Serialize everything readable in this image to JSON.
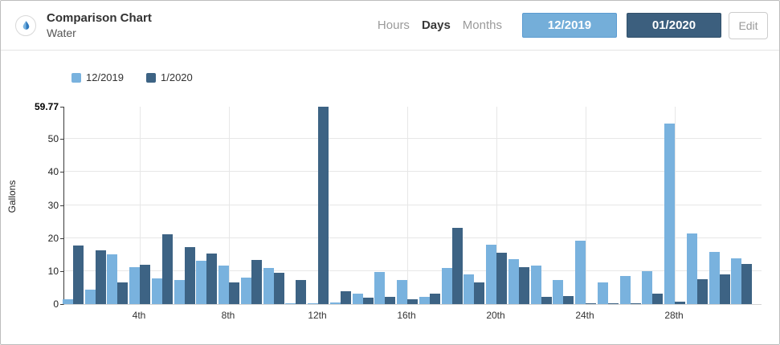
{
  "header": {
    "title": "Comparison Chart",
    "subtitle": "Water",
    "icon": "water-drop-icon",
    "period_tabs": [
      {
        "label": "Hours",
        "active": false
      },
      {
        "label": "Days",
        "active": true
      },
      {
        "label": "Months",
        "active": false
      }
    ],
    "series_buttons": [
      {
        "label": "12/2019",
        "color": "#74aed9"
      },
      {
        "label": "01/2020",
        "color": "#3c5f7e"
      }
    ],
    "edit_label": "Edit"
  },
  "legend": [
    {
      "label": "12/2019",
      "color": "#79b2de"
    },
    {
      "label": "1/2020",
      "color": "#3d6384"
    }
  ],
  "chart_data": {
    "type": "bar",
    "title": "",
    "xlabel": "",
    "ylabel": "Gallons",
    "ylim": [
      0,
      59.77
    ],
    "y_max_label": "59.77",
    "yticks": [
      0,
      10,
      20,
      30,
      40,
      50
    ],
    "grid": true,
    "legend_position": "top-left",
    "categories": [
      1,
      2,
      3,
      4,
      5,
      6,
      7,
      8,
      9,
      10,
      11,
      12,
      13,
      14,
      15,
      16,
      17,
      18,
      19,
      20,
      21,
      22,
      23,
      24,
      25,
      26,
      27,
      28,
      29,
      30,
      31
    ],
    "x_tick_days": [
      4,
      8,
      12,
      16,
      20,
      24,
      28
    ],
    "x_tick_labels": [
      "4th",
      "8th",
      "12th",
      "16th",
      "20th",
      "24th",
      "28th"
    ],
    "series": [
      {
        "name": "12/2019",
        "color": "#79b2de",
        "values": [
          1.5,
          4.4,
          15.1,
          11.2,
          7.7,
          7.2,
          13.0,
          11.6,
          8.0,
          11.0,
          0.3,
          0.2,
          0.5,
          3.2,
          9.8,
          7.4,
          2.3,
          11.0,
          9.1,
          18.1,
          13.7,
          11.7,
          7.4,
          19.3,
          6.6,
          8.4,
          10.0,
          54.6,
          21.4,
          15.7,
          13.8
        ]
      },
      {
        "name": "1/2020",
        "color": "#3d6384",
        "values": [
          17.7,
          16.3,
          6.6,
          11.8,
          21.2,
          17.2,
          15.3,
          6.5,
          13.4,
          9.5,
          7.4,
          59.77,
          3.9,
          1.9,
          2.2,
          1.4,
          3.2,
          23.0,
          6.5,
          15.6,
          11.2,
          2.3,
          2.4,
          0.2,
          0.2,
          0.2,
          3.2,
          0.8,
          7.6,
          9.0,
          12.1
        ]
      }
    ]
  }
}
